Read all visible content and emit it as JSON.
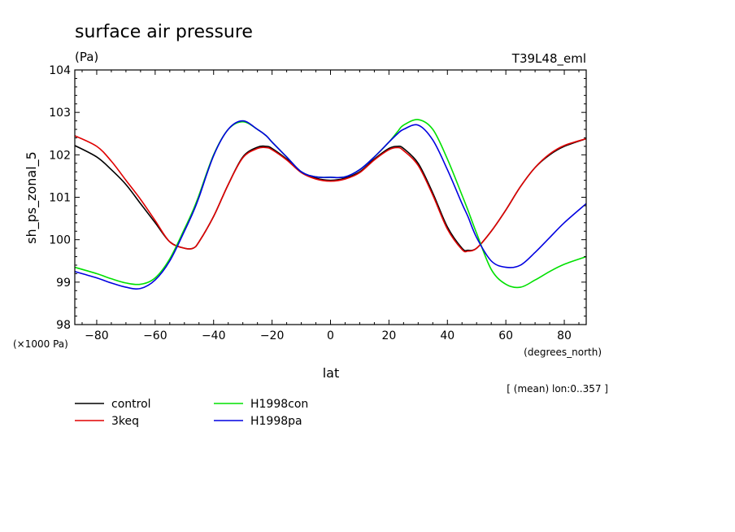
{
  "chart_data": {
    "type": "line",
    "title": "surface air pressure",
    "units": "(Pa)",
    "model_label": "T39L48_eml",
    "xlabel": "lat",
    "x_units": "(degrees_north)",
    "ylabel": "sh_ps_zonal_5",
    "y_units": "(×1000 Pa)",
    "note": "[ (mean) lon:0..357 ]",
    "xlim": [
      -87.5,
      87.5
    ],
    "ylim": [
      98,
      104
    ],
    "x_ticks": [
      -80,
      -60,
      -40,
      -20,
      0,
      20,
      40,
      60,
      80
    ],
    "x_tick_labels": [
      "−80",
      "−60",
      "−40",
      "−20",
      "0",
      "20",
      "40",
      "60",
      "80"
    ],
    "y_ticks": [
      98,
      99,
      100,
      101,
      102,
      103,
      104
    ],
    "y_tick_labels": [
      "98",
      "99",
      "100",
      "101",
      "102",
      "103",
      "104"
    ],
    "x": [
      -87.5,
      -80,
      -75,
      -70,
      -65,
      -60,
      -55,
      -50,
      -47,
      -45,
      -40,
      -35,
      -30,
      -25,
      -22,
      -20,
      -15,
      -10,
      -5,
      0,
      5,
      10,
      15,
      20,
      23,
      25,
      30,
      35,
      40,
      45,
      47,
      50,
      55,
      60,
      65,
      70,
      75,
      80,
      87.5
    ],
    "series": [
      {
        "name": "control",
        "color": "#000000",
        "values": [
          102.22,
          101.95,
          101.65,
          101.3,
          100.85,
          100.4,
          99.95,
          99.8,
          99.8,
          99.95,
          100.55,
          101.3,
          101.95,
          102.18,
          102.2,
          102.15,
          101.9,
          101.6,
          101.45,
          101.4,
          101.45,
          101.6,
          101.9,
          102.15,
          102.2,
          102.15,
          101.8,
          101.1,
          100.3,
          99.8,
          99.75,
          99.8,
          100.2,
          100.7,
          101.25,
          101.7,
          102.0,
          102.2,
          102.38
        ]
      },
      {
        "name": "3keq",
        "color": "#e00000",
        "values": [
          102.45,
          102.2,
          101.85,
          101.4,
          100.95,
          100.45,
          99.95,
          99.8,
          99.8,
          99.95,
          100.55,
          101.3,
          101.93,
          102.15,
          102.17,
          102.12,
          101.88,
          101.58,
          101.43,
          101.38,
          101.43,
          101.58,
          101.88,
          102.12,
          102.17,
          102.1,
          101.75,
          101.05,
          100.25,
          99.77,
          99.73,
          99.8,
          100.2,
          100.7,
          101.25,
          101.7,
          102.02,
          102.22,
          102.38
        ]
      },
      {
        "name": "H1998con",
        "color": "#00e000",
        "values": [
          99.35,
          99.2,
          99.08,
          98.98,
          98.95,
          99.1,
          99.55,
          100.25,
          100.7,
          101.05,
          102.0,
          102.6,
          102.78,
          102.6,
          102.45,
          102.3,
          101.95,
          101.6,
          101.48,
          101.47,
          101.48,
          101.65,
          101.95,
          102.3,
          102.55,
          102.7,
          102.83,
          102.6,
          101.9,
          101.05,
          100.7,
          100.15,
          99.3,
          98.95,
          98.88,
          99.05,
          99.25,
          99.42,
          99.6
        ]
      },
      {
        "name": "H1998pa",
        "color": "#0000e0",
        "values": [
          99.25,
          99.1,
          98.98,
          98.88,
          98.85,
          99.05,
          99.5,
          100.2,
          100.65,
          101.0,
          101.98,
          102.6,
          102.8,
          102.6,
          102.45,
          102.3,
          101.95,
          101.6,
          101.48,
          101.47,
          101.48,
          101.65,
          101.95,
          102.3,
          102.5,
          102.6,
          102.7,
          102.35,
          101.65,
          100.85,
          100.55,
          100.05,
          99.5,
          99.35,
          99.4,
          99.7,
          100.05,
          100.4,
          100.85
        ]
      }
    ],
    "legend": [
      {
        "label": "control",
        "color": "#000000"
      },
      {
        "label": "3keq",
        "color": "#e00000"
      },
      {
        "label": "H1998con",
        "color": "#00e000"
      },
      {
        "label": "H1998pa",
        "color": "#0000e0"
      }
    ]
  }
}
